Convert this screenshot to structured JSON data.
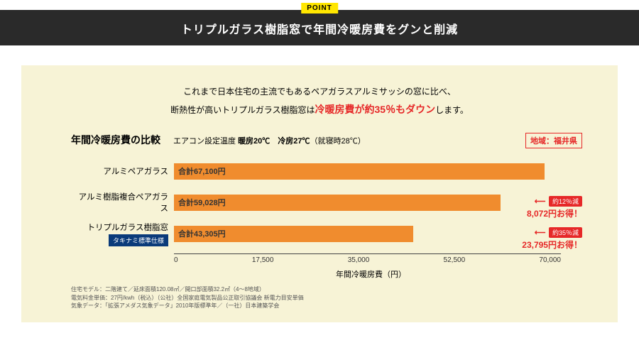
{
  "header": {
    "point_tag": "POINT",
    "title": "トリプルガラス樹脂窓で年間冷暖房費をグンと削減"
  },
  "intro": {
    "line1": "これまで日本住宅の主流でもあるペアガラスアルミサッシの窓に比べ、",
    "line2a": "断熱性が高いトリプルガラス樹脂窓は",
    "highlight": "冷暖房費が約35％もダウン",
    "line2b": "します。"
  },
  "chart": {
    "title": "年間冷暖房費の比較",
    "subtitle_label": "エアコン設定温度",
    "subtitle_heat": "暖房20℃",
    "subtitle_cool": "冷房27℃",
    "subtitle_note": "（就寝時28℃）",
    "region": "地域：福井県",
    "x_label": "年間冷暖房費（円）",
    "x_ticks": [
      "0",
      "17,500",
      "35,000",
      "52,500",
      "70,000"
    ],
    "x_max": 70000,
    "bar_color": "#f08c2e",
    "bars": [
      {
        "label": "アルミペアガラス",
        "value": 67100,
        "value_label": "合計67,100円"
      },
      {
        "label": "アルミ樹脂複合ペアガラス",
        "value": 59028,
        "value_label": "合計59,028円",
        "pct": "約12％減",
        "amount": "8,072円お得！"
      },
      {
        "label": "トリプルガラス樹脂窓",
        "spec": "タキナミ標準仕様",
        "value": 43305,
        "value_label": "合計43,305円",
        "pct": "約35％減",
        "amount": "23,795円お得！"
      }
    ]
  },
  "footnotes": {
    "l1": "住宅モデル：二階建て／延床面積120.08㎡／開口部面積32.2㎡（4～8地域）",
    "l2": "電気料金単価：27円/kwh（税込）（公社）全国家庭電気製品公正取引協議会 新電力目安単価",
    "l3": "気象データ：「拡張アメダス気象データ」2010年版標準年／（一社）日本建築学会"
  }
}
